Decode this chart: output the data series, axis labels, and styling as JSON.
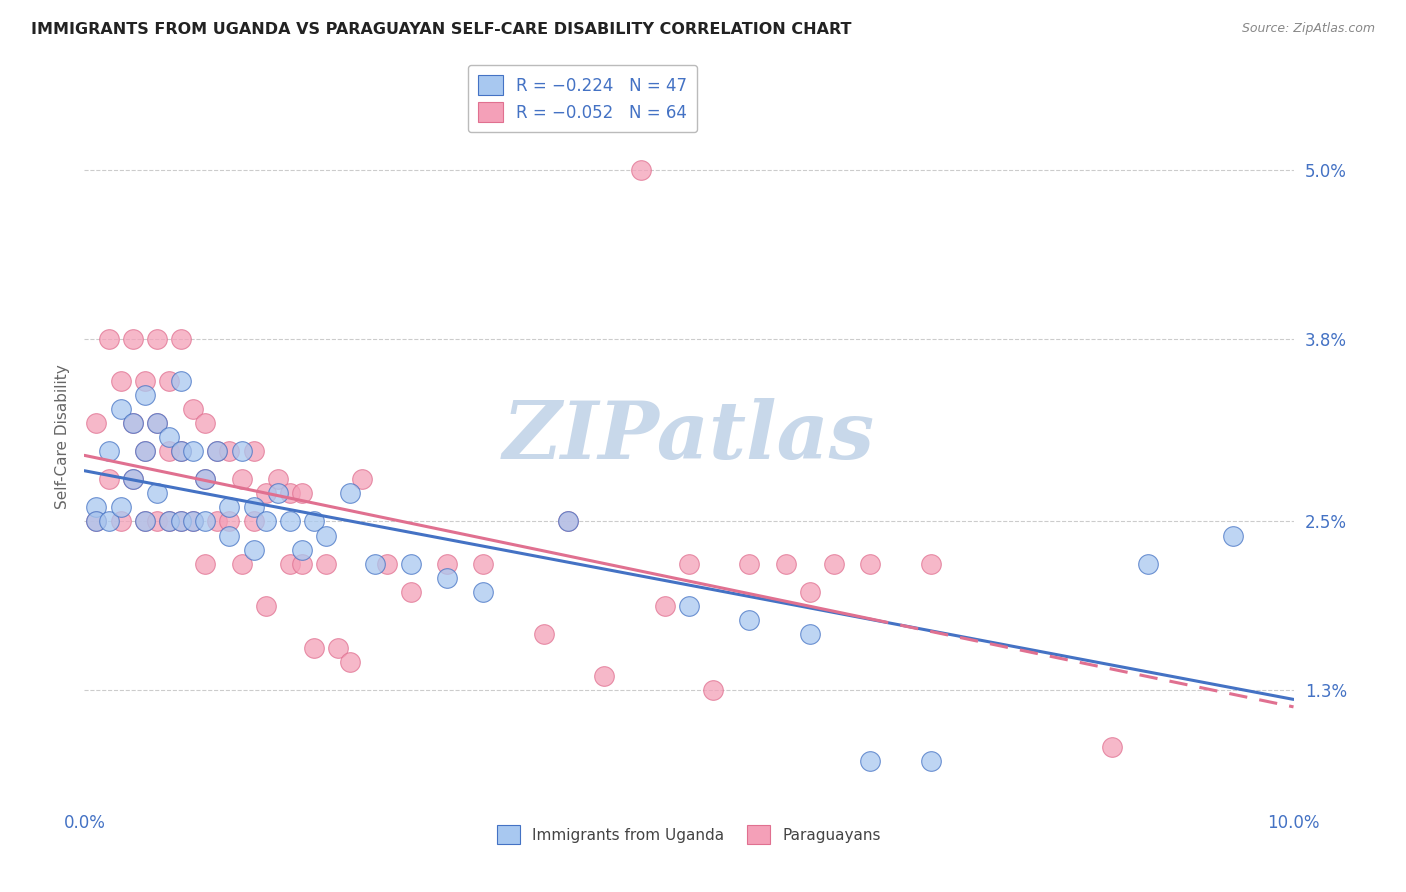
{
  "title": "IMMIGRANTS FROM UGANDA VS PARAGUAYAN SELF-CARE DISABILITY CORRELATION CHART",
  "source": "Source: ZipAtlas.com",
  "ylabel": "Self-Care Disability",
  "xlim": [
    0.0,
    0.1
  ],
  "ylim": [
    0.005,
    0.057
  ],
  "x_ticks": [
    0.0,
    0.02,
    0.04,
    0.06,
    0.08,
    0.1
  ],
  "x_tick_labels": [
    "0.0%",
    "",
    "",
    "",
    "",
    "10.0%"
  ],
  "y_ticks": [
    0.013,
    0.025,
    0.038,
    0.05
  ],
  "y_tick_labels": [
    "1.3%",
    "2.5%",
    "3.8%",
    "5.0%"
  ],
  "uganda_color": "#A8C8F0",
  "paraguay_color": "#F4A0B8",
  "uganda_line_color": "#4472C4",
  "paraguay_line_color": "#E07090",
  "legend_r_uganda": "R = −0.224",
  "legend_n_uganda": "N = 47",
  "legend_r_paraguay": "R = −0.052",
  "legend_n_paraguay": "N = 64",
  "watermark": "ZIPatlas",
  "watermark_color": "#C8D8EA",
  "background_color": "#FFFFFF",
  "uganda_points_x": [
    0.001,
    0.001,
    0.002,
    0.002,
    0.003,
    0.003,
    0.004,
    0.004,
    0.005,
    0.005,
    0.005,
    0.006,
    0.006,
    0.007,
    0.007,
    0.008,
    0.008,
    0.008,
    0.009,
    0.009,
    0.01,
    0.01,
    0.011,
    0.012,
    0.012,
    0.013,
    0.014,
    0.014,
    0.015,
    0.016,
    0.017,
    0.018,
    0.019,
    0.02,
    0.022,
    0.024,
    0.027,
    0.03,
    0.033,
    0.04,
    0.05,
    0.055,
    0.06,
    0.065,
    0.07,
    0.088,
    0.095
  ],
  "uganda_points_y": [
    0.026,
    0.025,
    0.03,
    0.025,
    0.033,
    0.026,
    0.032,
    0.028,
    0.034,
    0.03,
    0.025,
    0.032,
    0.027,
    0.031,
    0.025,
    0.035,
    0.03,
    0.025,
    0.03,
    0.025,
    0.028,
    0.025,
    0.03,
    0.026,
    0.024,
    0.03,
    0.026,
    0.023,
    0.025,
    0.027,
    0.025,
    0.023,
    0.025,
    0.024,
    0.027,
    0.022,
    0.022,
    0.021,
    0.02,
    0.025,
    0.019,
    0.018,
    0.017,
    0.008,
    0.008,
    0.022,
    0.024
  ],
  "paraguay_points_x": [
    0.001,
    0.001,
    0.002,
    0.002,
    0.003,
    0.003,
    0.004,
    0.004,
    0.004,
    0.005,
    0.005,
    0.005,
    0.006,
    0.006,
    0.006,
    0.007,
    0.007,
    0.007,
    0.008,
    0.008,
    0.008,
    0.009,
    0.009,
    0.01,
    0.01,
    0.01,
    0.011,
    0.011,
    0.012,
    0.012,
    0.013,
    0.013,
    0.014,
    0.014,
    0.015,
    0.015,
    0.016,
    0.017,
    0.017,
    0.018,
    0.018,
    0.019,
    0.02,
    0.021,
    0.022,
    0.023,
    0.025,
    0.027,
    0.03,
    0.033,
    0.038,
    0.04,
    0.043,
    0.046,
    0.048,
    0.05,
    0.052,
    0.055,
    0.058,
    0.06,
    0.062,
    0.065,
    0.07,
    0.085
  ],
  "paraguay_points_y": [
    0.032,
    0.025,
    0.038,
    0.028,
    0.035,
    0.025,
    0.038,
    0.032,
    0.028,
    0.035,
    0.03,
    0.025,
    0.038,
    0.032,
    0.025,
    0.035,
    0.03,
    0.025,
    0.038,
    0.03,
    0.025,
    0.033,
    0.025,
    0.032,
    0.028,
    0.022,
    0.03,
    0.025,
    0.03,
    0.025,
    0.028,
    0.022,
    0.03,
    0.025,
    0.027,
    0.019,
    0.028,
    0.027,
    0.022,
    0.027,
    0.022,
    0.016,
    0.022,
    0.016,
    0.015,
    0.028,
    0.022,
    0.02,
    0.022,
    0.022,
    0.017,
    0.025,
    0.014,
    0.05,
    0.019,
    0.022,
    0.013,
    0.022,
    0.022,
    0.02,
    0.022,
    0.022,
    0.022,
    0.009
  ],
  "grid_color": "#CCCCCC",
  "tick_color": "#4472C4",
  "ylabel_color": "#666666",
  "title_color": "#222222"
}
